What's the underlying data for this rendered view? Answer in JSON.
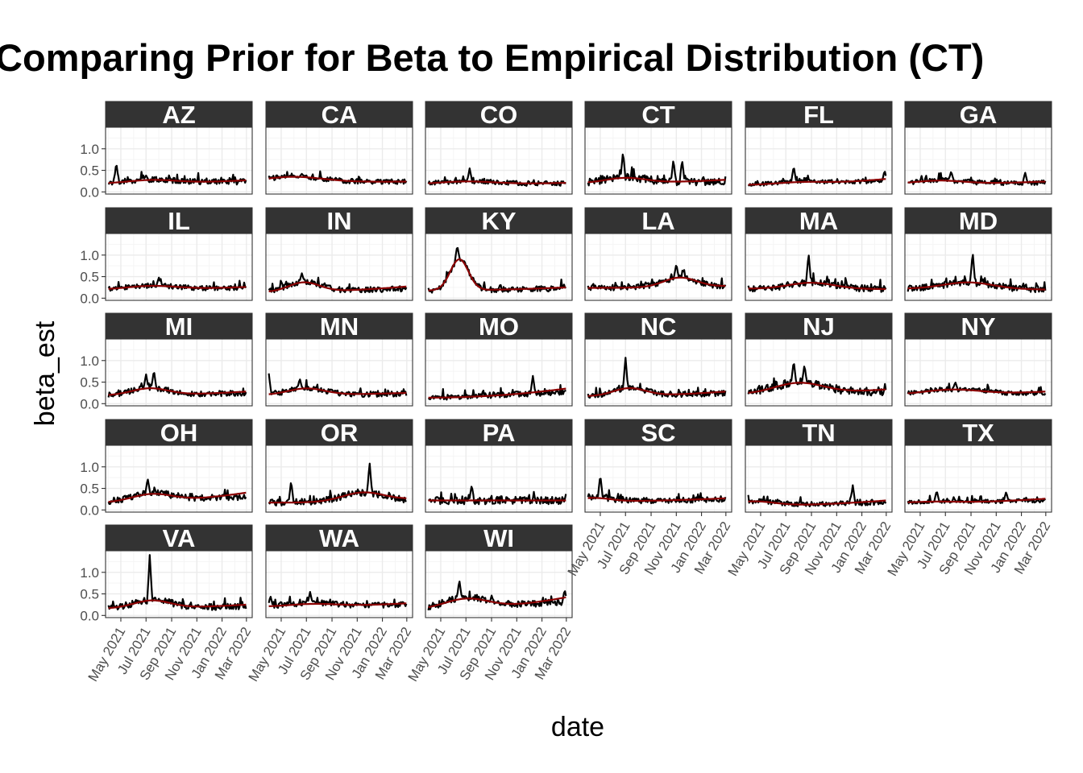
{
  "chart_data": {
    "type": "line",
    "title": "Comparing Prior for Beta to Empirical Distribution (CT)",
    "xlabel": "date",
    "ylabel": "beta_est",
    "x_ticks": [
      "May 2021",
      "Jul 2021",
      "Sep 2021",
      "Nov 2021",
      "Jan 2022",
      "Mar 2022"
    ],
    "y_ticks": [
      "0.0",
      "0.5",
      "1.0"
    ],
    "ylim": [
      -0.05,
      1.5
    ],
    "xlim": [
      "2021-03-25",
      "2022-03-15"
    ],
    "grid": true,
    "layout": "facet_wrap 6 columns",
    "colors": {
      "empirical": "#000000",
      "prior": "#8B0000",
      "strip": "#333333",
      "grid_major": "#ebebeb",
      "grid_minor": "#f5f5f5",
      "panel_border": "#333333"
    },
    "series": [
      {
        "values": [
          {
            "name": "AZ",
            "prior_base": 0.19,
            "prior_amp": 0.08,
            "prior_peak": "2021-07-15",
            "prior_width": 60,
            "prior_end": 0.27,
            "noise": 0.06,
            "spikes": [
              [
                "2021-04-20",
                0.68
              ],
              [
                "2021-07-01",
                0.38
              ]
            ]
          },
          {
            "name": "CA",
            "prior_base": 0.23,
            "prior_amp": 0.12,
            "prior_peak": "2021-06-01",
            "prior_width": 70,
            "prior_end": 0.24,
            "noise": 0.05,
            "spikes": [
              [
                "2021-06-20",
                0.42
              ]
            ]
          },
          {
            "name": "CO",
            "prior_base": 0.17,
            "prior_amp": 0.07,
            "prior_peak": "2021-07-01",
            "prior_width": 70,
            "prior_end": 0.21,
            "noise": 0.05,
            "spikes": [
              [
                "2021-07-10",
                0.55
              ]
            ]
          },
          {
            "name": "CT",
            "prior_base": 0.2,
            "prior_amp": 0.12,
            "prior_peak": "2021-07-01",
            "prior_width": 50,
            "prior_end": 0.28,
            "noise": 0.08,
            "spikes": [
              [
                "2021-06-25",
                0.93
              ],
              [
                "2021-10-25",
                0.75
              ],
              [
                "2021-11-15",
                0.75
              ]
            ]
          },
          {
            "name": "FL",
            "prior_base": 0.16,
            "prior_amp": 0.05,
            "prior_peak": "2021-08-01",
            "prior_width": 60,
            "prior_end": 0.3,
            "noise": 0.04,
            "spikes": [
              [
                "2021-07-20",
                0.6
              ],
              [
                "2022-02-25",
                0.5
              ]
            ]
          },
          {
            "name": "GA",
            "prior_base": 0.18,
            "prior_amp": 0.08,
            "prior_peak": "2021-06-15",
            "prior_width": 60,
            "prior_end": 0.24,
            "noise": 0.05,
            "spikes": [
              [
                "2021-07-15",
                0.48
              ],
              [
                "2022-01-10",
                0.45
              ]
            ]
          },
          {
            "name": "IL",
            "prior_base": 0.2,
            "prior_amp": 0.08,
            "prior_peak": "2021-07-15",
            "prior_width": 60,
            "prior_end": 0.26,
            "noise": 0.05,
            "spikes": [
              [
                "2021-08-01",
                0.48
              ]
            ]
          },
          {
            "name": "IN",
            "prior_base": 0.14,
            "prior_amp": 0.22,
            "prior_peak": "2021-06-25",
            "prior_width": 38,
            "prior_end": 0.27,
            "noise": 0.06,
            "spikes": [
              [
                "2021-06-20",
                0.58
              ]
            ]
          },
          {
            "name": "KY",
            "prior_base": 0.18,
            "prior_amp": 0.72,
            "prior_peak": "2021-06-15",
            "prior_width": 22,
            "prior_end": 0.25,
            "noise": 0.06,
            "spikes": [
              [
                "2021-06-10",
                1.22
              ]
            ]
          },
          {
            "name": "LA",
            "prior_base": 0.24,
            "prior_amp": 0.22,
            "prior_peak": "2021-11-10",
            "prior_width": 40,
            "prior_end": 0.28,
            "noise": 0.06,
            "spikes": [
              [
                "2021-11-01",
                0.8
              ]
            ]
          },
          {
            "name": "MA",
            "prior_base": 0.22,
            "prior_amp": 0.14,
            "prior_peak": "2021-09-01",
            "prior_width": 55,
            "prior_end": 0.21,
            "noise": 0.07,
            "spikes": [
              [
                "2021-08-25",
                1.05
              ]
            ]
          },
          {
            "name": "MD",
            "prior_base": 0.22,
            "prior_amp": 0.15,
            "prior_peak": "2021-08-25",
            "prior_width": 60,
            "prior_end": 0.2,
            "noise": 0.07,
            "spikes": [
              [
                "2021-09-05",
                1.08
              ]
            ]
          },
          {
            "name": "MI",
            "prior_base": 0.19,
            "prior_amp": 0.16,
            "prior_peak": "2021-07-10",
            "prior_width": 45,
            "prior_end": 0.28,
            "noise": 0.06,
            "spikes": [
              [
                "2021-07-20",
                0.78
              ],
              [
                "2021-07-01",
                0.68
              ]
            ]
          },
          {
            "name": "MN",
            "prior_base": 0.2,
            "prior_amp": 0.15,
            "prior_peak": "2021-07-01",
            "prior_width": 45,
            "prior_end": 0.25,
            "noise": 0.06,
            "spikes": [
              [
                "2021-04-01",
                0.7
              ],
              [
                "2021-06-15",
                0.58
              ]
            ]
          },
          {
            "name": "MO",
            "prior_base": 0.14,
            "prior_amp": 0.0,
            "prior_peak": "2021-08-01",
            "prior_width": 60,
            "prior_end": 0.35,
            "noise": 0.06,
            "spikes": [
              [
                "2021-12-10",
                0.65
              ]
            ]
          },
          {
            "name": "NC",
            "prior_base": 0.17,
            "prior_amp": 0.18,
            "prior_peak": "2021-07-10",
            "prior_width": 40,
            "prior_end": 0.28,
            "noise": 0.06,
            "spikes": [
              [
                "2021-07-01",
                1.07
              ]
            ]
          },
          {
            "name": "NJ",
            "prior_base": 0.22,
            "prior_amp": 0.25,
            "prior_peak": "2021-08-01",
            "prior_width": 60,
            "prior_end": 0.33,
            "noise": 0.09,
            "spikes": [
              [
                "2021-07-20",
                1.0
              ],
              [
                "2021-08-15",
                0.9
              ]
            ]
          },
          {
            "name": "NY",
            "prior_base": 0.2,
            "prior_amp": 0.12,
            "prior_peak": "2021-07-15",
            "prior_width": 70,
            "prior_end": 0.28,
            "noise": 0.05,
            "spikes": [
              [
                "2021-07-25",
                0.5
              ]
            ]
          },
          {
            "name": "OH",
            "prior_base": 0.17,
            "prior_amp": 0.18,
            "prior_peak": "2021-07-15",
            "prior_width": 50,
            "prior_end": 0.4,
            "noise": 0.07,
            "spikes": [
              [
                "2021-07-05",
                0.73
              ]
            ]
          },
          {
            "name": "OR",
            "prior_base": 0.17,
            "prior_amp": 0.2,
            "prior_peak": "2021-11-15",
            "prior_width": 50,
            "prior_end": 0.25,
            "noise": 0.07,
            "spikes": [
              [
                "2021-05-25",
                0.68
              ],
              [
                "2021-12-01",
                1.1
              ]
            ]
          },
          {
            "name": "PA",
            "prior_base": 0.22,
            "prior_amp": 0.0,
            "prior_peak": "2021-08-01",
            "prior_width": 60,
            "prior_end": 0.22,
            "noise": 0.08,
            "spikes": [
              [
                "2021-07-15",
                0.58
              ]
            ]
          },
          {
            "name": "SC",
            "prior_base": 0.2,
            "prior_amp": 0.08,
            "prior_peak": "2021-04-15",
            "prior_width": 40,
            "prior_end": 0.27,
            "noise": 0.06,
            "spikes": [
              [
                "2021-05-01",
                0.82
              ]
            ]
          },
          {
            "name": "TN",
            "prior_base": 0.1,
            "prior_amp": 0.1,
            "prior_peak": "2021-04-15",
            "prior_width": 50,
            "prior_end": 0.22,
            "noise": 0.05,
            "spikes": [
              [
                "2021-12-10",
                0.58
              ]
            ]
          },
          {
            "name": "TX",
            "prior_base": 0.16,
            "prior_amp": 0.03,
            "prior_peak": "2021-06-01",
            "prior_width": 60,
            "prior_end": 0.26,
            "noise": 0.04,
            "spikes": [
              [
                "2021-06-10",
                0.45
              ],
              [
                "2021-11-25",
                0.42
              ]
            ]
          },
          {
            "name": "VA",
            "prior_base": 0.16,
            "prior_amp": 0.18,
            "prior_peak": "2021-07-15",
            "prior_width": 45,
            "prior_end": 0.25,
            "noise": 0.07,
            "spikes": [
              [
                "2021-07-10",
                1.42
              ]
            ]
          },
          {
            "name": "WA",
            "prior_base": 0.2,
            "prior_amp": 0.06,
            "prior_peak": "2021-07-15",
            "prior_width": 60,
            "prior_end": 0.28,
            "noise": 0.06,
            "spikes": [
              [
                "2021-04-05",
                0.45
              ],
              [
                "2021-07-10",
                0.55
              ]
            ]
          },
          {
            "name": "WI",
            "prior_base": 0.13,
            "prior_amp": 0.24,
            "prior_peak": "2021-07-01",
            "prior_width": 55,
            "prior_end": 0.42,
            "noise": 0.07,
            "spikes": [
              [
                "2021-06-15",
                0.82
              ],
              [
                "2022-02-25",
                0.6
              ]
            ]
          }
        ]
      }
    ]
  }
}
